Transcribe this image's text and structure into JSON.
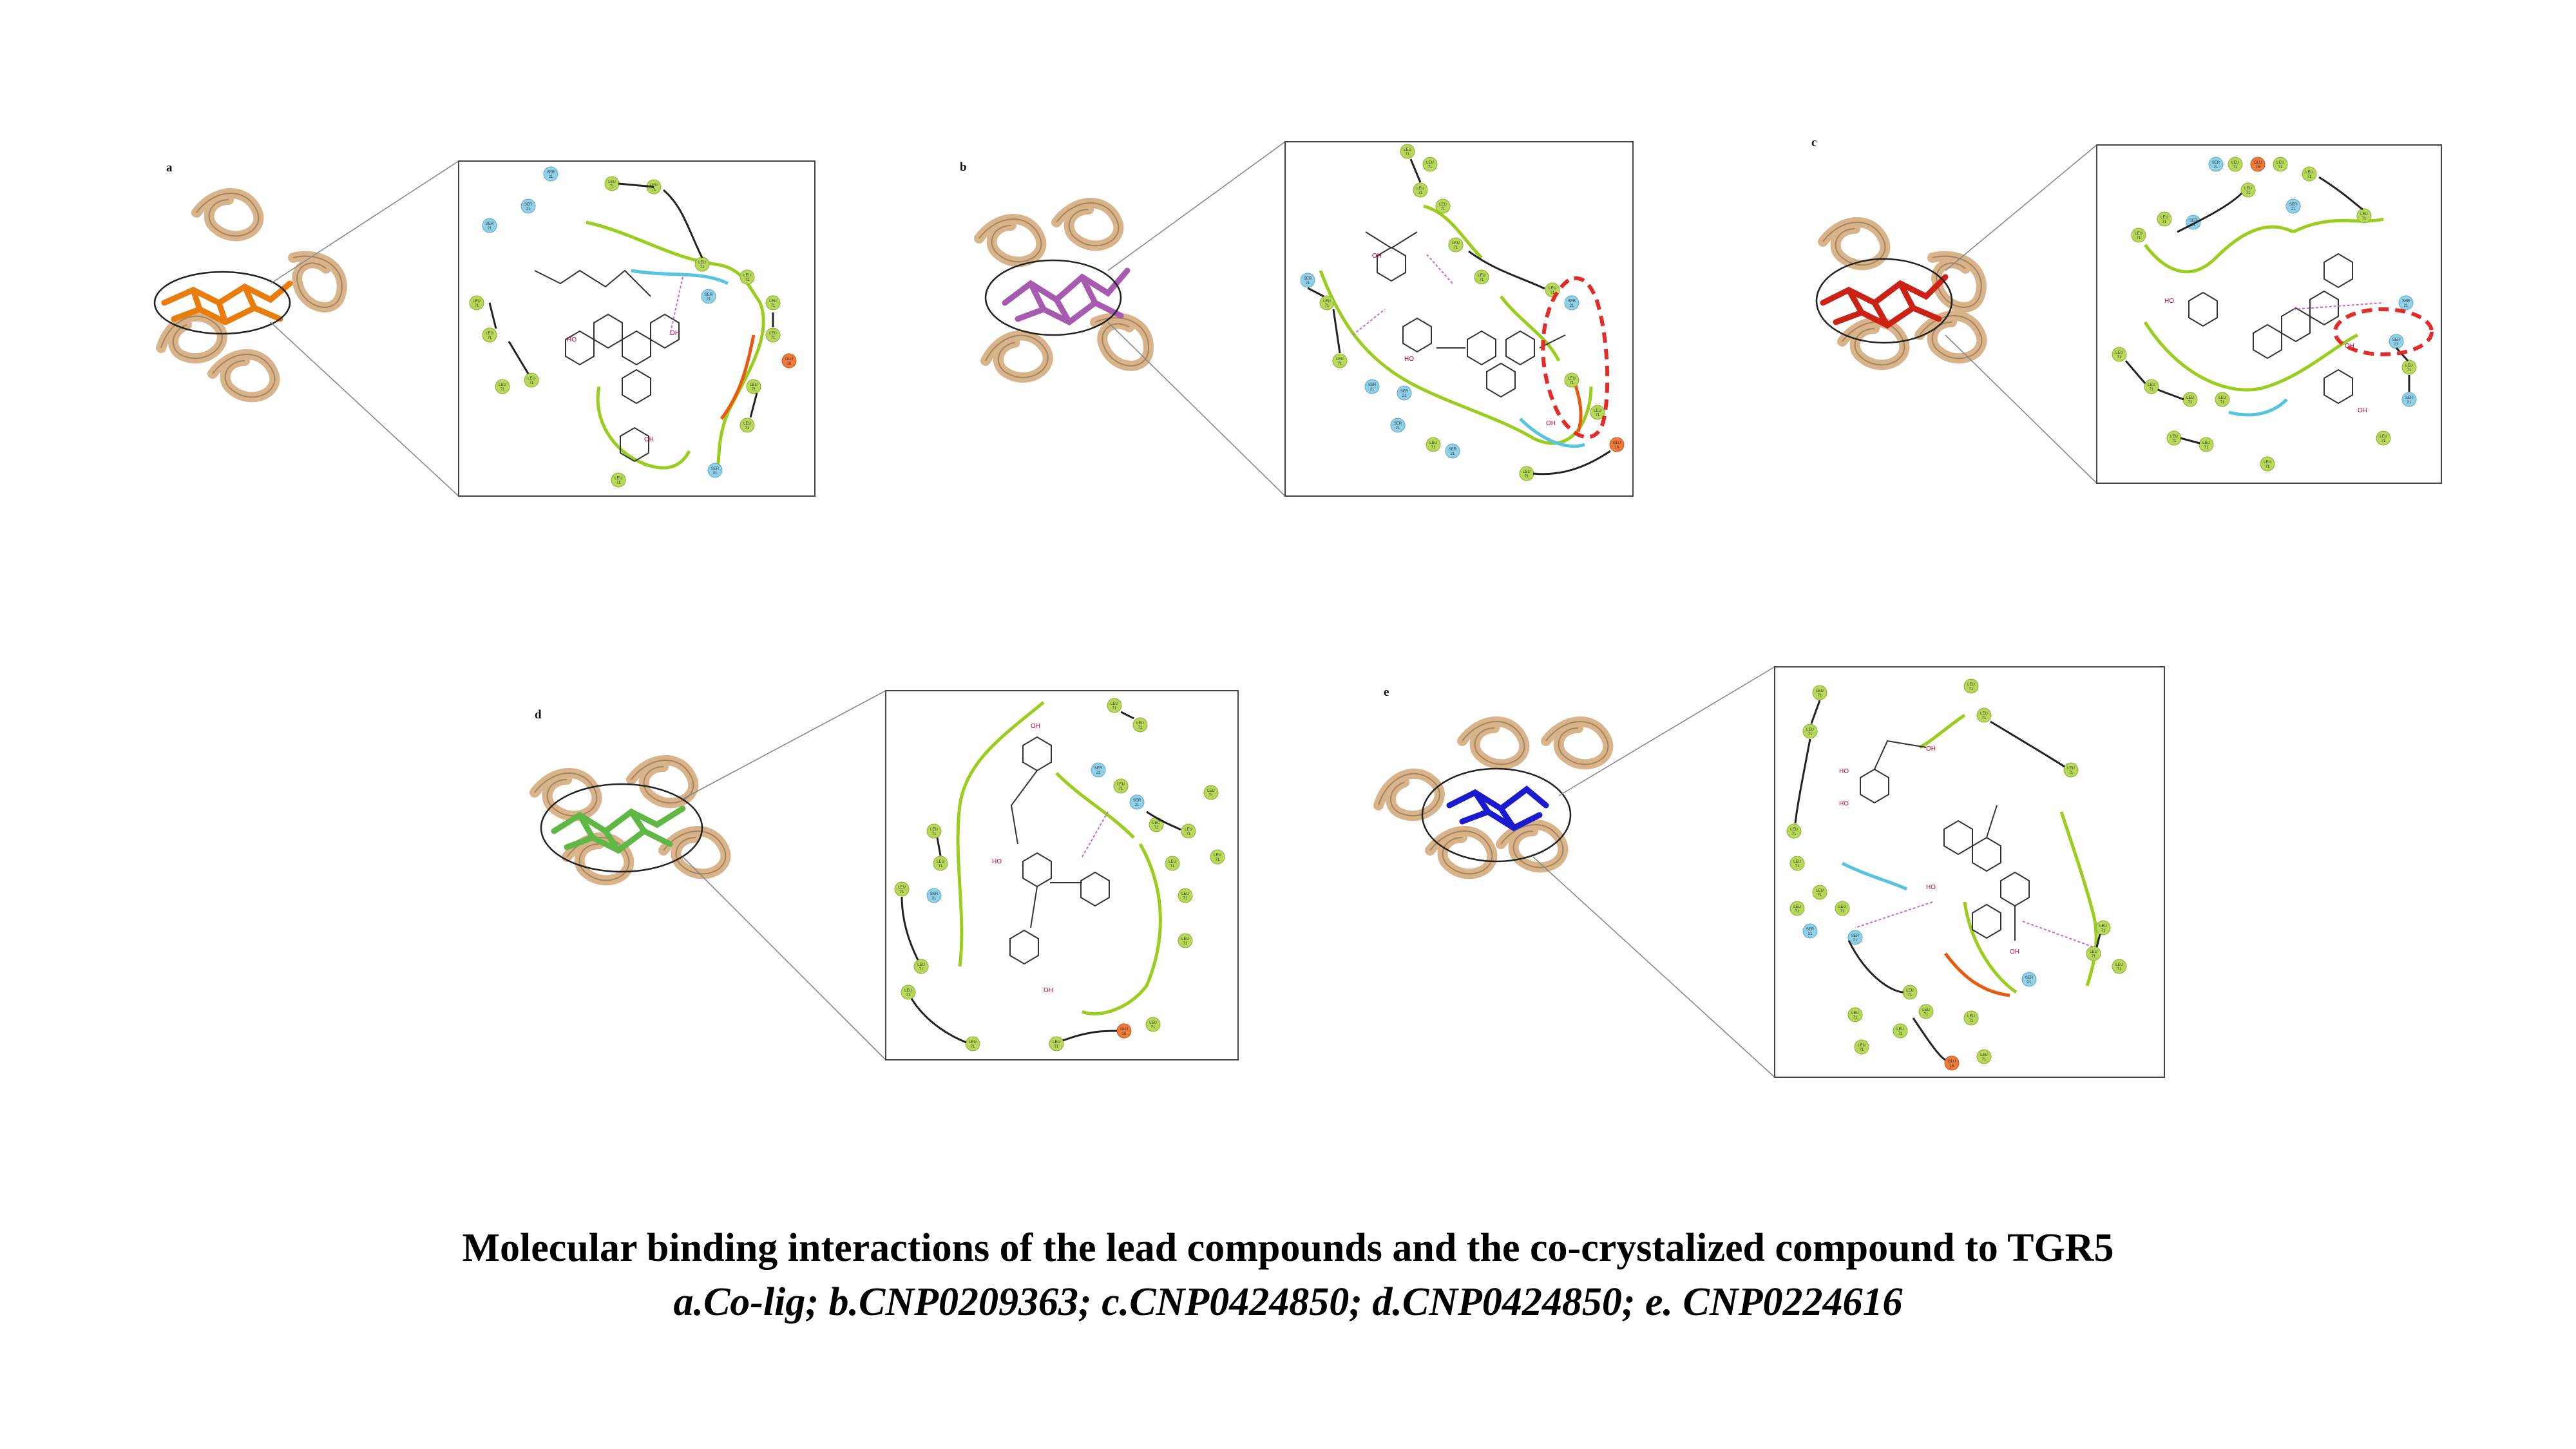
{
  "caption": {
    "line1": "Molecular binding interactions of the lead compounds and the co-crystalized compound to TGR5",
    "line2": "a.Co-lig; b.CNP0209363; c.CNP0424850; d.CNP0424850; e. CNP0224616"
  },
  "panels": [
    {
      "id": "a",
      "letter": "a",
      "ligand_color": "#e87c0c"
    },
    {
      "id": "b",
      "letter": "b",
      "ligand_color": "#a75bb0"
    },
    {
      "id": "c",
      "letter": "c",
      "ligand_color": "#cc2216"
    },
    {
      "id": "d",
      "letter": "d",
      "ligand_color": "#5fb845"
    },
    {
      "id": "e",
      "letter": "e",
      "ligand_color": "#1a1ad0"
    }
  ],
  "colors": {
    "protein_ribbon": "#d9b48a",
    "residue_hydrophobic": "#b7d957",
    "residue_polar": "#8fd0ea",
    "residue_negative": "#ee7a3a",
    "pocket_line": "#9acd1e",
    "solvent_line": "#56c4e0",
    "highlight": "#e52a2a",
    "hbond": "#d35fd3"
  }
}
